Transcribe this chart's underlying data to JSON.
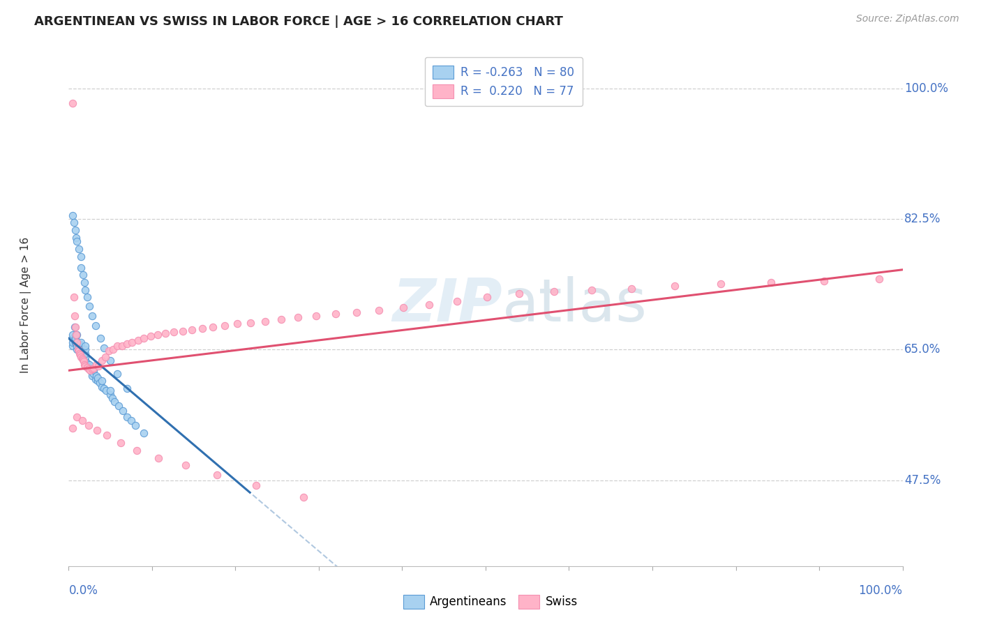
{
  "title": "ARGENTINEAN VS SWISS IN LABOR FORCE | AGE > 16 CORRELATION CHART",
  "source": "Source: ZipAtlas.com",
  "ylabel": "In Labor Force | Age > 16",
  "ytick_vals": [
    0.475,
    0.65,
    0.825,
    1.0
  ],
  "ytick_labels": [
    "47.5%",
    "65.0%",
    "82.5%",
    "100.0%"
  ],
  "legend_line1": "R = -0.263   N = 80",
  "legend_line2": "R =  0.220   N = 77",
  "blue_face": "#a8d1f0",
  "blue_edge": "#5b9bd5",
  "pink_face": "#ffb3c8",
  "pink_edge": "#f48fb1",
  "trend_blue_solid": "#3070b0",
  "trend_pink": "#e05070",
  "trend_dashed": "#b0c8e0",
  "grid_color": "#d0d0d0",
  "axis_tick_color": "#4472c4",
  "watermark_color": "#d8e8f0",
  "title_fontsize": 13,
  "source_fontsize": 10,
  "tick_fontsize": 12,
  "ylabel_fontsize": 11,
  "legend_fontsize": 12,
  "xlim": [
    0.0,
    1.0
  ],
  "ylim": [
    0.36,
    1.06
  ],
  "blue_x": [
    0.005,
    0.005,
    0.005,
    0.005,
    0.007,
    0.008,
    0.008,
    0.009,
    0.009,
    0.01,
    0.01,
    0.01,
    0.01,
    0.012,
    0.012,
    0.013,
    0.013,
    0.014,
    0.015,
    0.015,
    0.015,
    0.016,
    0.016,
    0.017,
    0.017,
    0.018,
    0.018,
    0.019,
    0.02,
    0.02,
    0.02,
    0.02,
    0.02,
    0.022,
    0.023,
    0.025,
    0.025,
    0.027,
    0.028,
    0.03,
    0.03,
    0.032,
    0.033,
    0.035,
    0.035,
    0.037,
    0.04,
    0.04,
    0.042,
    0.045,
    0.05,
    0.05,
    0.052,
    0.055,
    0.06,
    0.065,
    0.07,
    0.075,
    0.08,
    0.09,
    0.005,
    0.006,
    0.008,
    0.009,
    0.01,
    0.012,
    0.015,
    0.015,
    0.017,
    0.019,
    0.02,
    0.022,
    0.025,
    0.028,
    0.032,
    0.038,
    0.042,
    0.05,
    0.058,
    0.07
  ],
  "blue_y": [
    0.655,
    0.66,
    0.665,
    0.67,
    0.68,
    0.66,
    0.665,
    0.658,
    0.67,
    0.65,
    0.655,
    0.66,
    0.67,
    0.648,
    0.655,
    0.652,
    0.658,
    0.645,
    0.65,
    0.655,
    0.66,
    0.645,
    0.648,
    0.642,
    0.65,
    0.64,
    0.645,
    0.638,
    0.635,
    0.64,
    0.645,
    0.65,
    0.655,
    0.632,
    0.628,
    0.625,
    0.63,
    0.62,
    0.615,
    0.618,
    0.622,
    0.61,
    0.615,
    0.608,
    0.612,
    0.605,
    0.6,
    0.608,
    0.598,
    0.595,
    0.59,
    0.595,
    0.585,
    0.58,
    0.575,
    0.568,
    0.56,
    0.555,
    0.548,
    0.538,
    0.83,
    0.82,
    0.81,
    0.8,
    0.795,
    0.785,
    0.775,
    0.76,
    0.75,
    0.74,
    0.73,
    0.72,
    0.708,
    0.695,
    0.682,
    0.665,
    0.652,
    0.635,
    0.618,
    0.598
  ],
  "pink_x": [
    0.005,
    0.006,
    0.007,
    0.008,
    0.009,
    0.01,
    0.011,
    0.012,
    0.013,
    0.014,
    0.015,
    0.016,
    0.017,
    0.018,
    0.019,
    0.02,
    0.022,
    0.024,
    0.026,
    0.028,
    0.03,
    0.033,
    0.036,
    0.04,
    0.044,
    0.048,
    0.053,
    0.058,
    0.064,
    0.07,
    0.076,
    0.083,
    0.09,
    0.098,
    0.107,
    0.116,
    0.126,
    0.137,
    0.148,
    0.16,
    0.173,
    0.187,
    0.202,
    0.218,
    0.236,
    0.255,
    0.275,
    0.297,
    0.32,
    0.345,
    0.372,
    0.401,
    0.432,
    0.466,
    0.502,
    0.54,
    0.582,
    0.627,
    0.675,
    0.727,
    0.782,
    0.842,
    0.906,
    0.972,
    0.005,
    0.01,
    0.016,
    0.024,
    0.034,
    0.046,
    0.062,
    0.082,
    0.108,
    0.14,
    0.178,
    0.225,
    0.282
  ],
  "pink_y": [
    0.98,
    0.72,
    0.695,
    0.68,
    0.67,
    0.66,
    0.65,
    0.648,
    0.645,
    0.643,
    0.64,
    0.638,
    0.636,
    0.634,
    0.63,
    0.628,
    0.626,
    0.624,
    0.622,
    0.624,
    0.625,
    0.63,
    0.628,
    0.635,
    0.64,
    0.648,
    0.65,
    0.655,
    0.655,
    0.658,
    0.66,
    0.662,
    0.665,
    0.668,
    0.67,
    0.672,
    0.674,
    0.675,
    0.676,
    0.678,
    0.68,
    0.682,
    0.685,
    0.686,
    0.688,
    0.69,
    0.693,
    0.695,
    0.698,
    0.7,
    0.703,
    0.706,
    0.71,
    0.715,
    0.72,
    0.725,
    0.728,
    0.73,
    0.732,
    0.735,
    0.738,
    0.74,
    0.742,
    0.745,
    0.545,
    0.56,
    0.555,
    0.548,
    0.542,
    0.535,
    0.525,
    0.515,
    0.505,
    0.495,
    0.482,
    0.468,
    0.452
  ]
}
